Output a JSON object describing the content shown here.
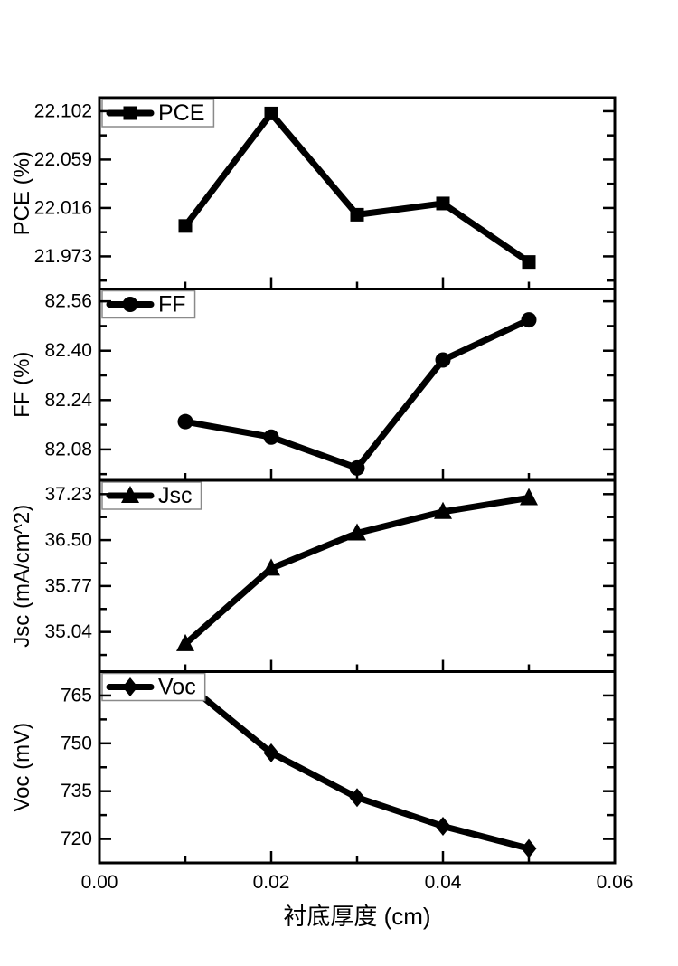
{
  "page": {
    "background": "#ffffff",
    "foreground": "#000000"
  },
  "chart_data": {
    "type": "line",
    "title": "",
    "xlabel": "衬底厚度 (cm)",
    "xlim": [
      0,
      0.06
    ],
    "xtick_values": [
      0,
      0.02,
      0.04,
      0.06
    ],
    "xtick_labels": [
      "0.00",
      "0.02",
      "0.04",
      "0.06"
    ],
    "xminor_values": [
      0.01,
      0.03,
      0.05
    ],
    "x": [
      0.01,
      0.02,
      0.03,
      0.04,
      0.05
    ],
    "grid": false,
    "line_color": "#000000",
    "marker_color": "#000000",
    "legend_position": "top-left-inside",
    "legend_border_color": "#8a8a8a",
    "panels": [
      {
        "id": "pce",
        "legend": "PCE",
        "ylabel": "PCE (%)",
        "marker": "square",
        "ylim": [
          21.944,
          22.114
        ],
        "ytick_values": [
          21.973,
          22.016,
          22.059,
          22.102
        ],
        "ytick_labels": [
          "21.973",
          "22.016",
          "22.059",
          "22.102"
        ],
        "values": [
          22.0,
          22.1,
          22.01,
          22.02,
          21.968
        ]
      },
      {
        "id": "ff",
        "legend": "FF",
        "ylabel": "FF (%)",
        "marker": "circle",
        "ylim": [
          81.98,
          82.6
        ],
        "ytick_values": [
          82.08,
          82.24,
          82.4,
          82.56
        ],
        "ytick_labels": [
          "82.08",
          "82.24",
          "82.40",
          "82.56"
        ],
        "values": [
          82.17,
          82.12,
          82.02,
          82.37,
          82.5
        ]
      },
      {
        "id": "jsc",
        "legend": "Jsc",
        "ylabel": "Jsc (mA/cm^2)",
        "marker": "triangle-up",
        "ylim": [
          34.41,
          37.45
        ],
        "ytick_values": [
          35.04,
          35.77,
          36.5,
          37.23
        ],
        "ytick_labels": [
          "35.04",
          "35.77",
          "36.50",
          "37.23"
        ],
        "values": [
          34.85,
          36.05,
          36.61,
          36.95,
          37.17
        ]
      },
      {
        "id": "voc",
        "legend": "Voc",
        "ylabel": "Voc (mV)",
        "marker": "diamond",
        "ylim": [
          712.5,
          772.5
        ],
        "ytick_values": [
          720,
          735,
          750,
          765
        ],
        "ytick_labels": [
          "720",
          "735",
          "750",
          "765"
        ],
        "values": [
          769,
          747,
          733,
          724,
          717
        ]
      }
    ]
  }
}
